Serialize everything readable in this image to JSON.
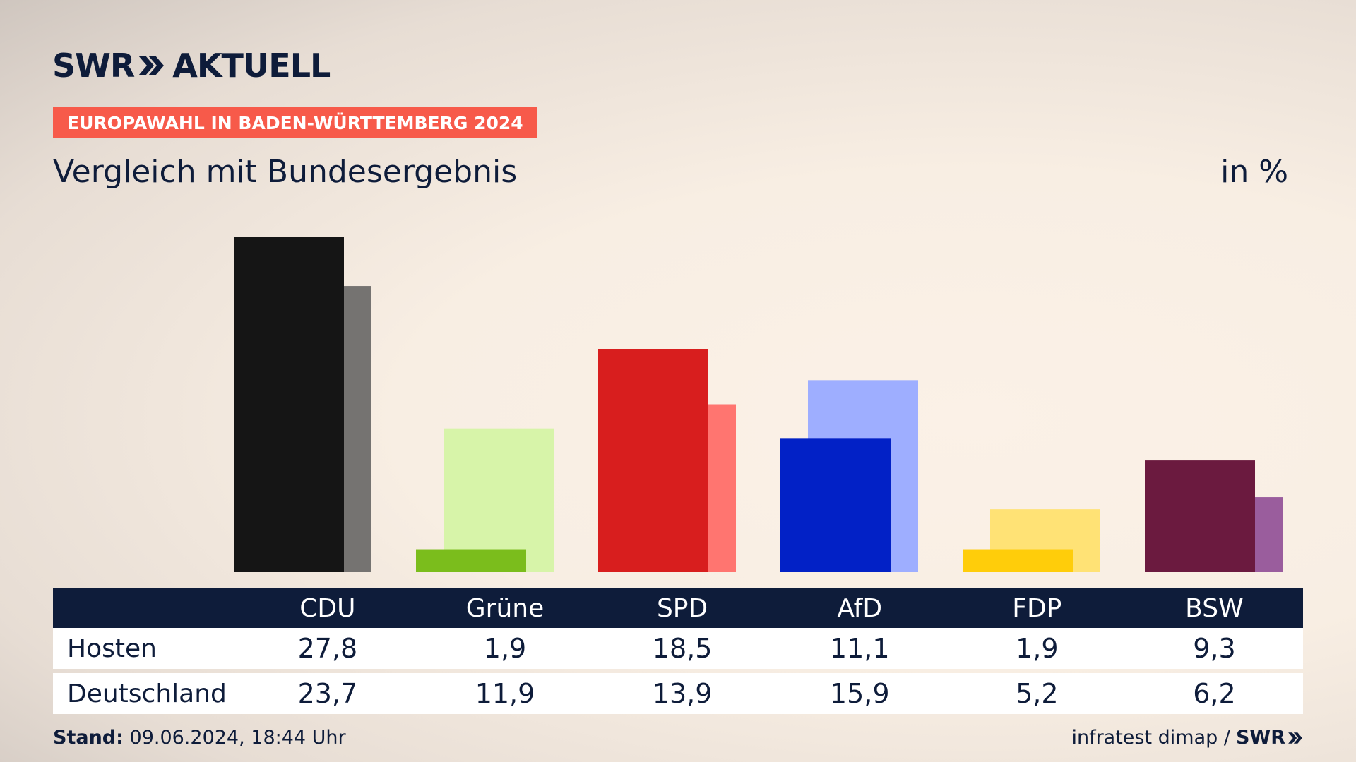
{
  "brand": {
    "left": "SWR",
    "right": "AKTUELL"
  },
  "kicker": "EUROPAWAHL IN BADEN-WÜRTTEMBERG 2024",
  "subtitle": "Vergleich mit Bundesergebnis",
  "unit": "in %",
  "chart_data": {
    "type": "bar",
    "categories": [
      "CDU",
      "Grüne",
      "SPD",
      "AfD",
      "FDP",
      "BSW"
    ],
    "series": [
      {
        "name": "Hosten",
        "values": [
          27.8,
          1.9,
          18.5,
          11.1,
          1.9,
          9.3
        ]
      },
      {
        "name": "Deutschland",
        "values": [
          23.7,
          11.9,
          13.9,
          15.9,
          5.2,
          6.2
        ]
      }
    ],
    "colors": {
      "Hosten": [
        "#151515",
        "#7bbd1c",
        "#d81e1e",
        "#0221c6",
        "#ffcd0a",
        "#6b1a3f"
      ],
      "Deutschland": [
        "#757371",
        "#d7f4a9",
        "#ff7570",
        "#9eaeff",
        "#ffe275",
        "#9a5d9d"
      ]
    },
    "ylim": [
      0,
      27.8
    ]
  },
  "table": {
    "rows": [
      {
        "label": "Hosten",
        "values": [
          "27,8",
          "1,9",
          "18,5",
          "11,1",
          "1,9",
          "9,3"
        ]
      },
      {
        "label": "Deutschland",
        "values": [
          "23,7",
          "11,9",
          "13,9",
          "15,9",
          "5,2",
          "6,2"
        ]
      }
    ]
  },
  "footer": {
    "stand_label": "Stand:",
    "stand_value": "09.06.2024, 18:44 Uhr",
    "source": "infratest dimap /",
    "source_brand": "SWR"
  },
  "theme": {
    "navy": "#0e1c3a",
    "accent": "#f75a4a"
  }
}
